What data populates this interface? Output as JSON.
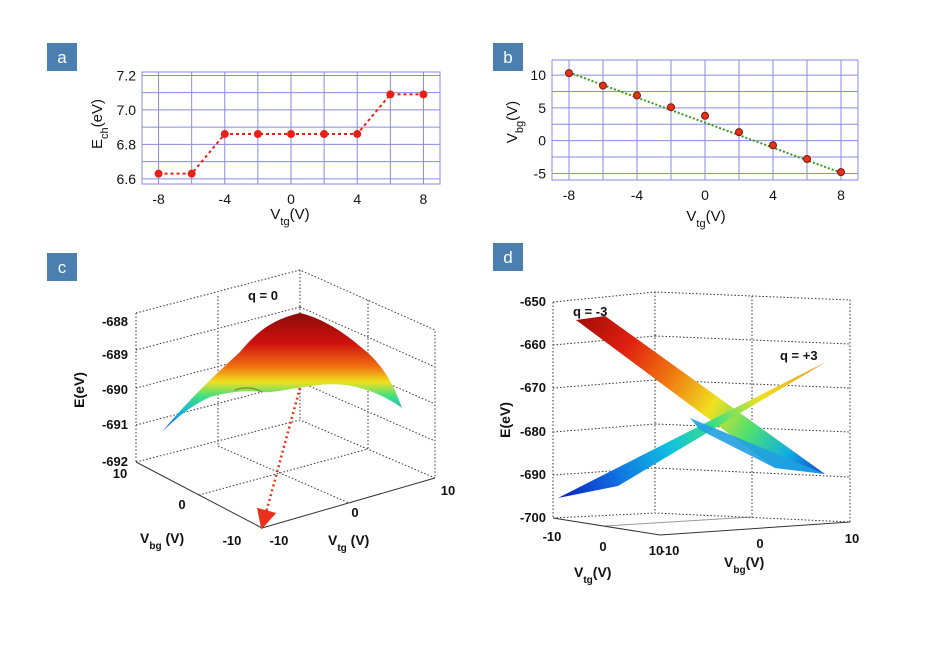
{
  "panels": {
    "a": "a",
    "b": "b",
    "c": "c",
    "d": "d"
  },
  "colors": {
    "badge": "#4a7fb0",
    "grid": "#8a8ae0",
    "a_series": "#e8201a",
    "b_line": "#3a9a1a",
    "b_marker": "#e8301a",
    "c_arrow": "#e8301a"
  },
  "chart_data": [
    {
      "panel": "a",
      "type": "line",
      "x": [
        -8,
        -6,
        -4,
        -2,
        0,
        2,
        4,
        6,
        8
      ],
      "series": [
        {
          "values": [
            6.63,
            6.63,
            6.86,
            6.86,
            6.86,
            6.86,
            6.86,
            7.09,
            7.09
          ]
        }
      ],
      "xticks": [
        "-8",
        "-4",
        "0",
        "4",
        "8"
      ],
      "yticks": [
        "6.6",
        "6.8",
        "7.0",
        "7.2"
      ],
      "xlabel": {
        "main": "V",
        "sub": "tg",
        "unit": "(V)"
      },
      "ylabel": {
        "main": "E",
        "sub": "ch",
        "unit": "(eV)"
      },
      "xlim": [
        -9,
        9
      ],
      "ylim": [
        6.57,
        7.22
      ],
      "grid": true
    },
    {
      "panel": "b",
      "type": "scatter",
      "x": [
        -8,
        -6,
        -4,
        -2,
        0,
        2,
        4,
        6,
        8
      ],
      "series": [
        {
          "values": [
            10.3,
            8.4,
            6.9,
            5.1,
            3.8,
            1.3,
            -0.7,
            -2.8,
            -4.8
          ]
        }
      ],
      "fit_line": {
        "x": [
          -8,
          8
        ],
        "y": [
          10.4,
          -4.9
        ]
      },
      "xticks": [
        "-8",
        "-4",
        "0",
        "4",
        "8"
      ],
      "yticks": [
        "10",
        "5",
        "0",
        "-5"
      ],
      "xlabel": {
        "main": "V",
        "sub": "tg",
        "unit": "(V)"
      },
      "ylabel": {
        "main": "V",
        "sub": "bg",
        "unit": "(V)"
      },
      "xlim": [
        -9,
        9
      ],
      "ylim": [
        -6,
        12.3
      ],
      "grid": true
    },
    {
      "panel": "c",
      "type": "surface",
      "annotation": "q = 0",
      "zticks": [
        "-688",
        "-689",
        "-690",
        "-691",
        "-692"
      ],
      "xticks": [
        "10",
        "0",
        "-10"
      ],
      "yticks": [
        "-10",
        "0",
        "10"
      ],
      "zlabel": "E(eV)",
      "xlabel": {
        "main": "V",
        "sub": "bg",
        "unit": " (V)"
      },
      "ylabel": {
        "main": "V",
        "sub": "tg",
        "unit": " (V)"
      }
    },
    {
      "panel": "d",
      "type": "surface",
      "annotations": [
        "q = -3",
        "q = +3"
      ],
      "zticks": [
        "-650",
        "-660",
        "-670",
        "-680",
        "-690",
        "-700"
      ],
      "xticks": [
        "-10",
        "0",
        "10"
      ],
      "yticks": [
        "-10",
        "0",
        "10"
      ],
      "zlabel": "E(eV)",
      "xlabel": {
        "main": "V",
        "sub": "tg",
        "unit": "(V)"
      },
      "ylabel": {
        "main": "V",
        "sub": "bg",
        "unit": "(V)"
      }
    }
  ]
}
